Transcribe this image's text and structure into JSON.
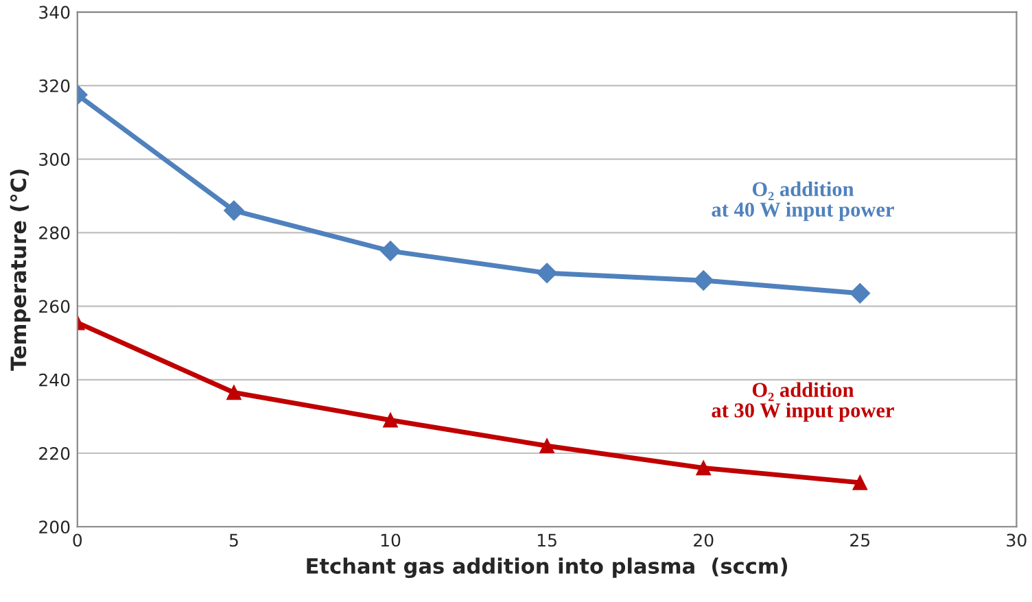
{
  "chart_data": {
    "type": "line",
    "xlabel": "Etchant gas addition into plasma  (sccm)",
    "ylabel": "Temperature (°C)",
    "x": [
      0,
      5,
      10,
      15,
      20,
      25
    ],
    "series": [
      {
        "name": "O₂ addition\nat 40 W input power",
        "color": "#4f81bd",
        "marker": "diamond",
        "values": [
          317.5,
          286,
          275,
          269,
          267,
          263.5
        ]
      },
      {
        "name": "O₂ addition\nat 30 W input power",
        "color": "#c00000",
        "marker": "triangle",
        "values": [
          255.5,
          236.5,
          229,
          222,
          216,
          212
        ]
      }
    ],
    "xlim": [
      0,
      30
    ],
    "xticks": [
      0,
      5,
      10,
      15,
      20,
      25,
      30
    ],
    "ylim": [
      200,
      340
    ],
    "yticks": [
      200,
      220,
      240,
      260,
      280,
      300,
      320,
      340
    ],
    "grid": "y",
    "line_style": "solid"
  }
}
